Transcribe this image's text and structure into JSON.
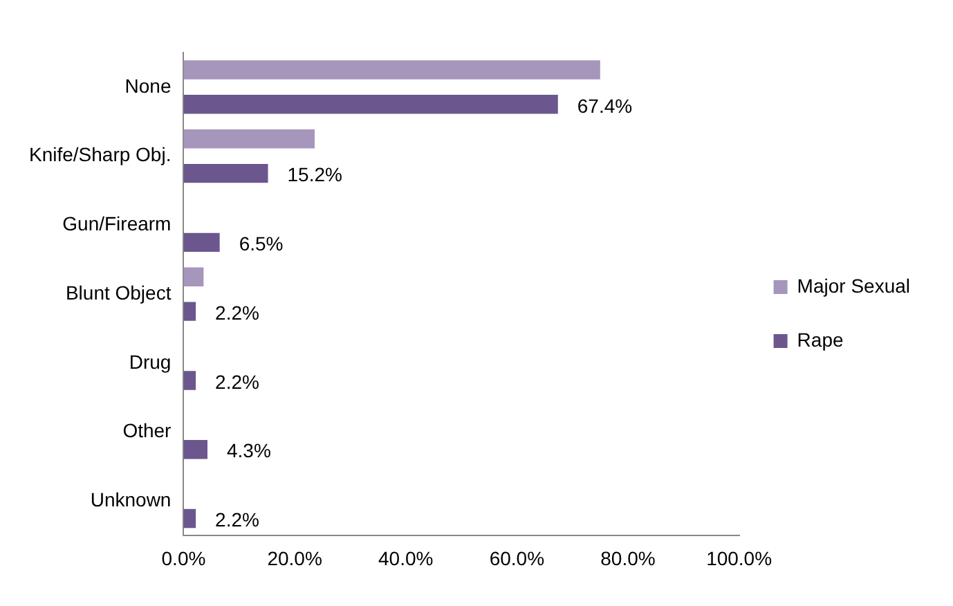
{
  "chart_data": {
    "type": "bar",
    "orientation": "horizontal",
    "categories": [
      "None",
      "Knife/Sharp Obj.",
      "Gun/Firearm",
      "Blunt Object",
      "Drug",
      "Other",
      "Unknown"
    ],
    "series": [
      {
        "name": "Major Sexual",
        "color": "#a696bc",
        "values": [
          75,
          23.6,
          0,
          3.6,
          0,
          0,
          0
        ]
      },
      {
        "name": "Rape",
        "color": "#6b578e",
        "values": [
          67.4,
          15.2,
          6.5,
          2.2,
          2.2,
          4.3,
          2.2
        ],
        "value_labels": [
          "67.4%",
          "15.2%",
          "6.5%",
          "2.2%",
          "2.2%",
          "4.3%",
          "2.2%"
        ]
      }
    ],
    "xlim": [
      0,
      100
    ],
    "xticks": [
      {
        "value": 0,
        "label": "0.0%"
      },
      {
        "value": 20,
        "label": "20.0%"
      },
      {
        "value": 40,
        "label": "40.0%"
      },
      {
        "value": 60,
        "label": "60.0%"
      },
      {
        "value": 80,
        "label": "80.0%"
      },
      {
        "value": 100,
        "label": "100.0%"
      }
    ],
    "grid": false,
    "legend": "right"
  }
}
